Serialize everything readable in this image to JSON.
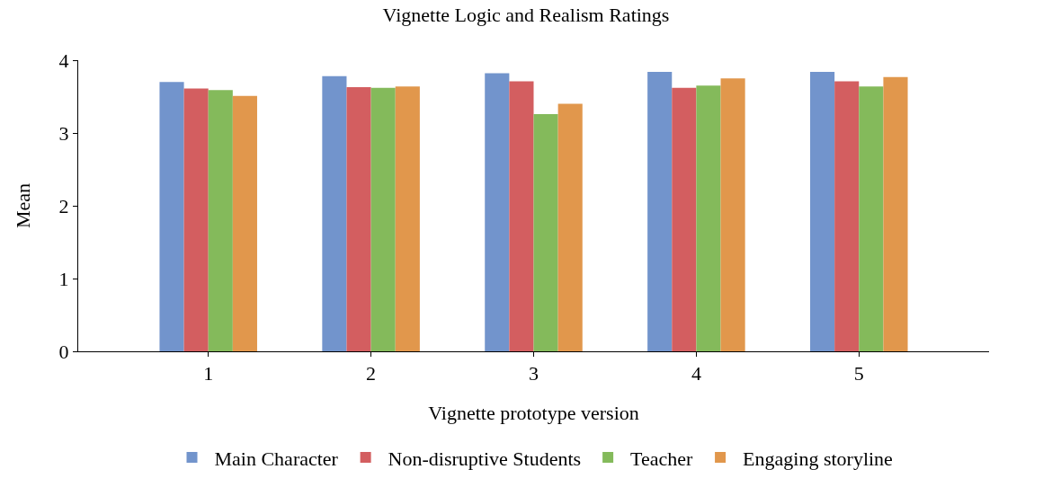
{
  "chart_data": {
    "type": "bar",
    "title": "Vignette Logic and Realism Ratings",
    "xlabel": "Vignette prototype version",
    "ylabel": "Mean",
    "categories": [
      "1",
      "2",
      "3",
      "4",
      "5"
    ],
    "series": [
      {
        "name": "Main Character",
        "color": "#7294cc",
        "values": [
          3.7,
          3.78,
          3.82,
          3.84,
          3.84
        ]
      },
      {
        "name": "Non-disruptive Students",
        "color": "#d35e60",
        "values": [
          3.61,
          3.63,
          3.71,
          3.62,
          3.71
        ]
      },
      {
        "name": "Teacher",
        "color": "#84ba5b",
        "values": [
          3.59,
          3.62,
          3.26,
          3.65,
          3.64
        ]
      },
      {
        "name": "Engaging storyline",
        "color": "#e1974c",
        "values": [
          3.51,
          3.64,
          3.4,
          3.75,
          3.77
        ]
      }
    ],
    "ylim": [
      0,
      4
    ],
    "yticks": [
      0,
      1,
      2,
      3,
      4
    ],
    "grid": false,
    "legend": "bottom"
  }
}
